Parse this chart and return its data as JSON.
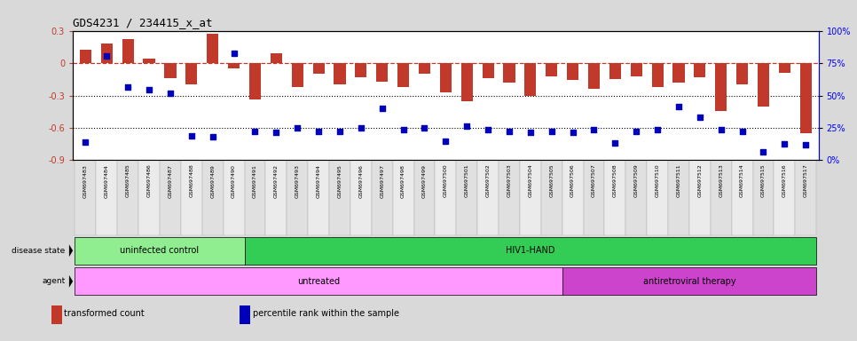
{
  "title": "GDS4231 / 234415_x_at",
  "samples": [
    "GSM697483",
    "GSM697484",
    "GSM697485",
    "GSM697486",
    "GSM697487",
    "GSM697488",
    "GSM697489",
    "GSM697490",
    "GSM697491",
    "GSM697492",
    "GSM697493",
    "GSM697494",
    "GSM697495",
    "GSM697496",
    "GSM697497",
    "GSM697498",
    "GSM697499",
    "GSM697500",
    "GSM697501",
    "GSM697502",
    "GSM697503",
    "GSM697504",
    "GSM697505",
    "GSM697506",
    "GSM697507",
    "GSM697508",
    "GSM697509",
    "GSM697510",
    "GSM697511",
    "GSM697512",
    "GSM697513",
    "GSM697514",
    "GSM697515",
    "GSM697516",
    "GSM697517"
  ],
  "bar_values": [
    0.12,
    0.18,
    0.22,
    0.04,
    -0.14,
    -0.2,
    0.27,
    -0.05,
    -0.34,
    0.09,
    -0.22,
    -0.1,
    -0.2,
    -0.13,
    -0.17,
    -0.22,
    -0.1,
    -0.27,
    -0.35,
    -0.14,
    -0.18,
    -0.3,
    -0.12,
    -0.16,
    -0.24,
    -0.15,
    -0.12,
    -0.22,
    -0.18,
    -0.13,
    -0.44,
    -0.2,
    -0.4,
    -0.09,
    -0.65
  ],
  "dot_values": [
    -0.73,
    0.07,
    -0.22,
    -0.25,
    -0.28,
    -0.67,
    -0.68,
    0.09,
    -0.63,
    -0.64,
    -0.6,
    -0.63,
    -0.63,
    -0.6,
    -0.42,
    -0.62,
    -0.6,
    -0.72,
    -0.58,
    -0.62,
    -0.63,
    -0.64,
    -0.63,
    -0.64,
    -0.62,
    -0.74,
    -0.63,
    -0.62,
    -0.4,
    -0.5,
    -0.62,
    -0.63,
    -0.82,
    -0.75,
    -0.76
  ],
  "bar_color": "#c0392b",
  "dot_color": "#0000bb",
  "ylim_left": [
    -0.9,
    0.3
  ],
  "yticks_left": [
    -0.9,
    -0.6,
    -0.3,
    0.0,
    0.3
  ],
  "ytick_labels_right": [
    "0%",
    "25%",
    "50%",
    "75%",
    "100%"
  ],
  "hline_y": 0.0,
  "dotted_lines": [
    -0.3,
    -0.6
  ],
  "disease_state_groups": [
    {
      "label": "uninfected control",
      "start": 0,
      "end": 8,
      "color": "#90EE90"
    },
    {
      "label": "HIV1-HAND",
      "start": 8,
      "end": 35,
      "color": "#33cc55"
    }
  ],
  "agent_groups": [
    {
      "label": "untreated",
      "start": 0,
      "end": 23,
      "color": "#FF99FF"
    },
    {
      "label": "antiretroviral therapy",
      "start": 23,
      "end": 35,
      "color": "#CC44CC"
    }
  ],
  "legend_items": [
    {
      "color": "#c0392b",
      "label": "transformed count"
    },
    {
      "color": "#0000bb",
      "label": "percentile rank within the sample"
    }
  ],
  "background_color": "#d9d9d9",
  "plot_bg": "#ffffff"
}
